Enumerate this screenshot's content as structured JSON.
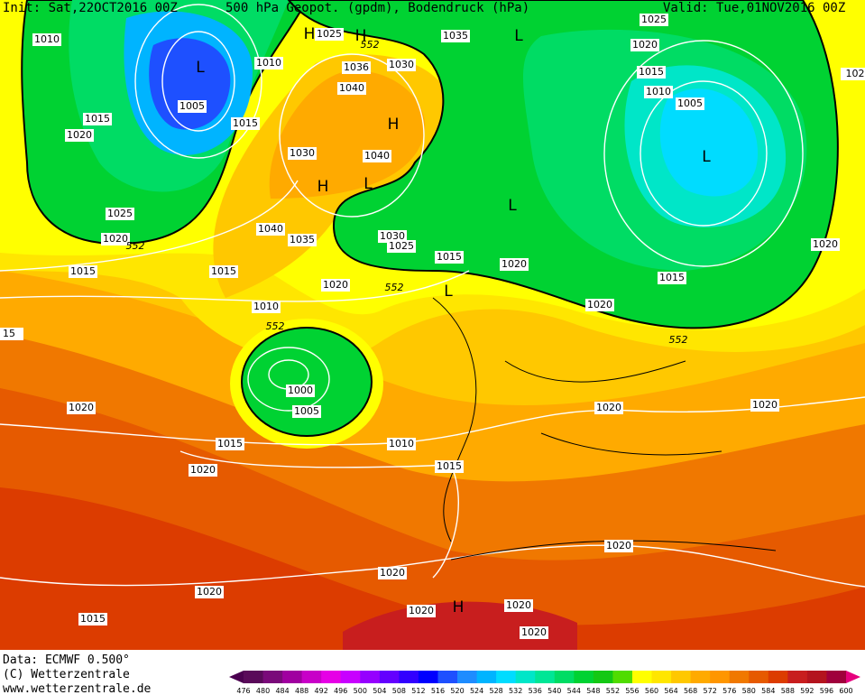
{
  "header": {
    "init": "Init: Sat,22OCT2016 00Z",
    "title": "500 hPa Geopot. (gpdm), Bodendruck (hPa)",
    "valid": "Valid: Tue,01NOV2016 00Z"
  },
  "footer": {
    "data": "Data: ECMWF   0.500°",
    "copyright": "(C) Wetterzentrale",
    "url": "www.wetterzentrale.de"
  },
  "isobar_labels": [
    "1010",
    "1025",
    "552",
    "1035",
    "1025",
    "1020",
    "1010",
    "1036",
    "1030",
    "1015",
    "1040",
    "1010",
    "1005",
    "1005",
    "1015",
    "1015",
    "1020",
    "1030",
    "1040",
    "1025",
    "1040",
    "1035",
    "1030",
    "1025",
    "1020",
    "552",
    "1020",
    "1015",
    "1020",
    "1015",
    "1015",
    "1020",
    "552",
    "1015",
    "1010",
    "1020",
    "552",
    "15",
    "552",
    "1000",
    "1020",
    "1020",
    "1020",
    "1005",
    "1015",
    "1010",
    "1020",
    "1015",
    "1020",
    "1020",
    "1020",
    "1020",
    "1020",
    "1015",
    "1020",
    "102"
  ],
  "pressure_centers": [
    "L",
    "H",
    "H",
    "L",
    "H",
    "H",
    "L",
    "L",
    "L",
    "L",
    "H"
  ],
  "colorbar": {
    "labels": [
      "476",
      "480",
      "484",
      "488",
      "492",
      "496",
      "500",
      "504",
      "508",
      "512",
      "516",
      "520",
      "524",
      "528",
      "532",
      "536",
      "540",
      "544",
      "548",
      "552",
      "556",
      "560",
      "564",
      "568",
      "572",
      "576",
      "580",
      "584",
      "588",
      "592",
      "596",
      "600"
    ],
    "colors": [
      "#5a0a5a",
      "#7a0a7a",
      "#a000a0",
      "#c800c8",
      "#e600e6",
      "#c800ff",
      "#9600ff",
      "#6400ff",
      "#3200ff",
      "#0000ff",
      "#1e50ff",
      "#1e8cff",
      "#00b4ff",
      "#00dcff",
      "#00e6c8",
      "#00e696",
      "#00dc64",
      "#00d232",
      "#14c814",
      "#50dc00",
      "#ffff00",
      "#ffe600",
      "#ffc800",
      "#ffaa00",
      "#ff9600",
      "#f07800",
      "#e65a00",
      "#dc3c00",
      "#c81e1e",
      "#b4141e",
      "#a0003c"
    ],
    "under_color": "#4b0050",
    "over_color": "#e6007e"
  }
}
